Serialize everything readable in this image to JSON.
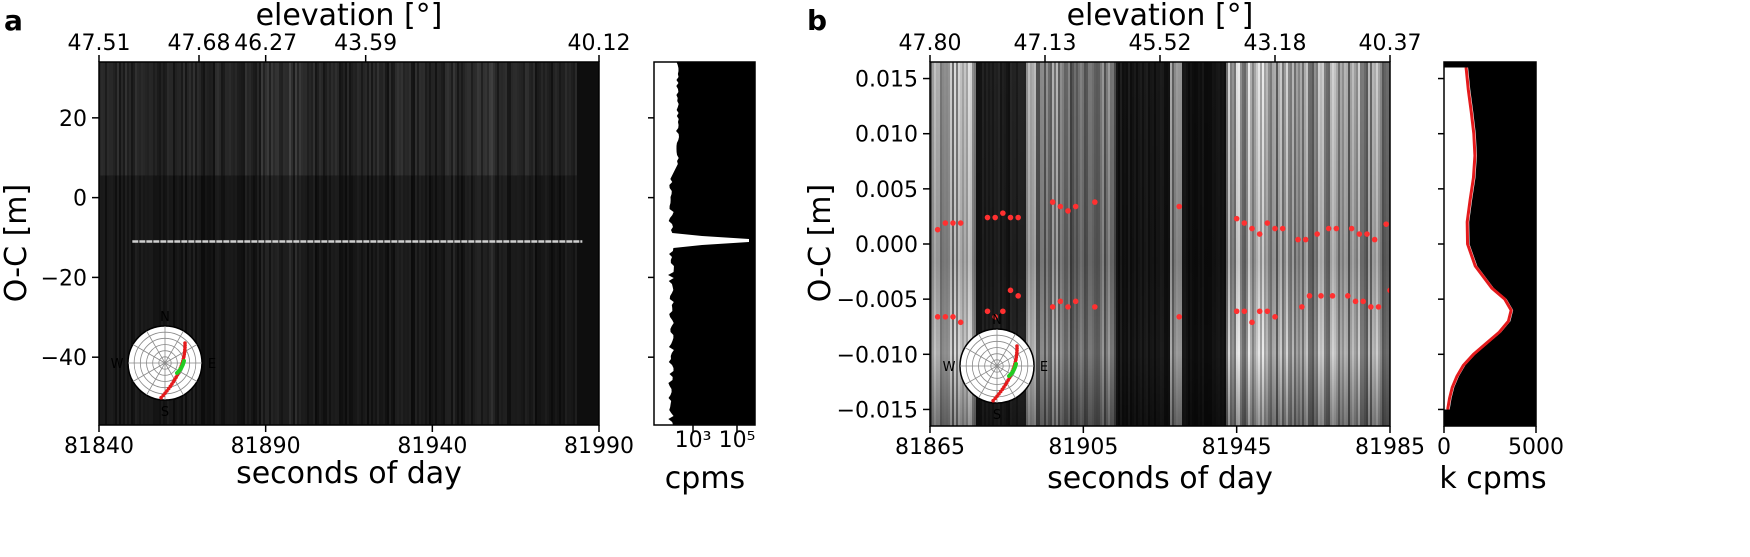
{
  "chart_data": [
    {
      "panel": "a",
      "type": "heatmap",
      "xlabel": "seconds of day",
      "ylabel": "O-C [m]",
      "top_axis_label": "elevation [°]",
      "x_ticks": [
        81840,
        81890,
        81940,
        81990
      ],
      "xlim": [
        81840,
        81990
      ],
      "y_ticks": [
        -40,
        -20,
        0,
        20
      ],
      "y_tick_labels": [
        "−40",
        "−20",
        "0",
        "20"
      ],
      "ylim": [
        -57,
        34
      ],
      "top_ticks": [
        "47.51",
        "47.68",
        "46.27",
        "43.59",
        "40.12"
      ],
      "top_tick_x": [
        81840,
        81870,
        81890,
        81920,
        81990
      ],
      "signal_track": {
        "x_start": 81850,
        "x_end": 81985,
        "y": -11
      },
      "side_histogram": {
        "xlabel": "cpms",
        "x_tick_labels": [
          "10³",
          "10⁵"
        ],
        "scale": "log",
        "peak_y": -11
      },
      "skyplot": {
        "labels": {
          "north": "N",
          "south": "S",
          "east": "E",
          "west": "W"
        },
        "track_color": "#e41a1c",
        "highlight_color": "#22cc22"
      }
    },
    {
      "panel": "b",
      "type": "heatmap",
      "xlabel": "seconds of day",
      "ylabel": "O-C [m]",
      "top_axis_label": "elevation [°]",
      "x_ticks": [
        81865,
        81905,
        81945,
        81985
      ],
      "xlim": [
        81865,
        81985
      ],
      "y_ticks": [
        -0.015,
        -0.01,
        -0.005,
        0.0,
        0.005,
        0.01,
        0.015
      ],
      "y_tick_labels": [
        "−0.015",
        "−0.010",
        "−0.005",
        "0.000",
        "0.005",
        "0.010",
        "0.015"
      ],
      "ylim": [
        -0.0165,
        0.0165
      ],
      "top_ticks": [
        "47.80",
        "47.13",
        "45.52",
        "43.18",
        "40.37"
      ],
      "top_tick_x": [
        81865,
        81895,
        81925,
        81955,
        81985
      ],
      "red_points_upper": [
        [
          81867,
          0.0013
        ],
        [
          81869,
          0.0019
        ],
        [
          81871,
          0.0019
        ],
        [
          81873,
          0.0019
        ],
        [
          81880,
          0.0024
        ],
        [
          81882,
          0.0024
        ],
        [
          81884,
          0.0028
        ],
        [
          81886,
          0.0024
        ],
        [
          81888,
          0.0024
        ],
        [
          81897,
          0.0038
        ],
        [
          81899,
          0.0034
        ],
        [
          81901,
          0.003
        ],
        [
          81903,
          0.0034
        ],
        [
          81908,
          0.0038
        ],
        [
          81930,
          0.0034
        ],
        [
          81945,
          0.0023
        ],
        [
          81947,
          0.0019
        ],
        [
          81949,
          0.0014
        ],
        [
          81951,
          0.0009
        ],
        [
          81953,
          0.0019
        ],
        [
          81955,
          0.0014
        ],
        [
          81957,
          0.0014
        ],
        [
          81961,
          0.0004
        ],
        [
          81963,
          0.0004
        ],
        [
          81966,
          0.0009
        ],
        [
          81969,
          0.0014
        ],
        [
          81971,
          0.0014
        ],
        [
          81975,
          0.0014
        ],
        [
          81977,
          0.0009
        ],
        [
          81979,
          0.0009
        ],
        [
          81981,
          0.0004
        ],
        [
          81984,
          0.0018
        ]
      ],
      "red_points_lower": [
        [
          81867,
          -0.0066
        ],
        [
          81869,
          -0.0066
        ],
        [
          81871,
          -0.0066
        ],
        [
          81873,
          -0.0071
        ],
        [
          81880,
          -0.0061
        ],
        [
          81882,
          -0.0066
        ],
        [
          81884,
          -0.0061
        ],
        [
          81886,
          -0.0042
        ],
        [
          81888,
          -0.0047
        ],
        [
          81897,
          -0.0057
        ],
        [
          81899,
          -0.0052
        ],
        [
          81901,
          -0.0057
        ],
        [
          81903,
          -0.0052
        ],
        [
          81908,
          -0.0057
        ],
        [
          81930,
          -0.0066
        ],
        [
          81945,
          -0.0061
        ],
        [
          81947,
          -0.0061
        ],
        [
          81949,
          -0.0071
        ],
        [
          81951,
          -0.0061
        ],
        [
          81953,
          -0.0061
        ],
        [
          81955,
          -0.0066
        ],
        [
          81962,
          -0.0057
        ],
        [
          81964,
          -0.0047
        ],
        [
          81967,
          -0.0047
        ],
        [
          81970,
          -0.0047
        ],
        [
          81974,
          -0.0047
        ],
        [
          81976,
          -0.0052
        ],
        [
          81978,
          -0.0052
        ],
        [
          81980,
          -0.0057
        ],
        [
          81982,
          -0.0057
        ],
        [
          81985,
          -0.0042
        ]
      ],
      "side_histogram": {
        "xlabel": "k cpms",
        "x_ticks": [
          0,
          5000
        ],
        "xlim": [
          0,
          5000
        ],
        "fit_color": "#e41a1c",
        "profile": [
          [
            0.016,
            1200
          ],
          [
            0.014,
            1320
          ],
          [
            0.012,
            1480
          ],
          [
            0.01,
            1620
          ],
          [
            0.008,
            1680
          ],
          [
            0.006,
            1600
          ],
          [
            0.004,
            1420
          ],
          [
            0.002,
            1260
          ],
          [
            0.0,
            1280
          ],
          [
            -0.002,
            1700
          ],
          [
            -0.004,
            2600
          ],
          [
            -0.005,
            3300
          ],
          [
            -0.006,
            3650
          ],
          [
            -0.007,
            3500
          ],
          [
            -0.008,
            3000
          ],
          [
            -0.009,
            2300
          ],
          [
            -0.01,
            1600
          ],
          [
            -0.011,
            1050
          ],
          [
            -0.012,
            700
          ],
          [
            -0.013,
            450
          ],
          [
            -0.014,
            300
          ],
          [
            -0.015,
            200
          ]
        ]
      },
      "skyplot": {
        "labels": {
          "north": "N",
          "south": "S",
          "east": "E",
          "west": "W"
        },
        "track_color": "#e41a1c",
        "highlight_color": "#22cc22"
      }
    }
  ]
}
